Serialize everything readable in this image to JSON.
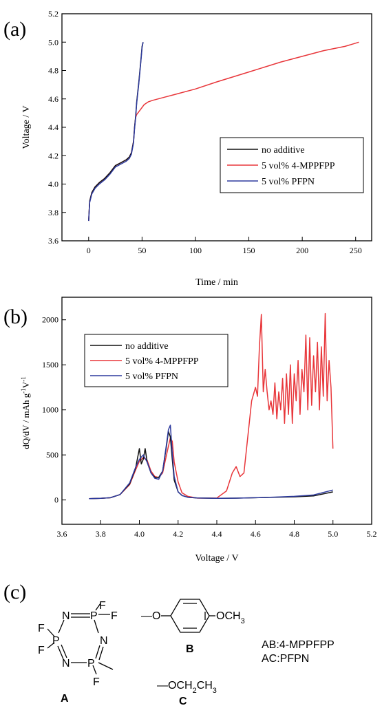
{
  "panel_labels": [
    "(a)",
    "(b)",
    "(c)"
  ],
  "colors": {
    "no_additive": "#111111",
    "mppfpp": "#e8363a",
    "pfpn": "#2d3a9e",
    "axis": "#000000"
  },
  "chart_data": [
    {
      "type": "line",
      "xlabel": "Time / min",
      "ylabel": "Voltage / V",
      "xlim": [
        -25,
        265
      ],
      "ylim": [
        3.6,
        5.2
      ],
      "xticks": [
        "0",
        "50",
        "100",
        "150",
        "200",
        "250"
      ],
      "yticks": [
        "3.6",
        "3.8",
        "4.0",
        "4.2",
        "4.4",
        "4.6",
        "4.8",
        "5.0",
        "5.2"
      ],
      "legend": {
        "placement": "center-right",
        "entries": [
          "no additive",
          "5 vol% 4-MPPFPP",
          "5 vol% PFPN"
        ]
      },
      "series": [
        {
          "name": "no additive",
          "x": [
            0,
            1,
            3,
            6,
            10,
            15,
            20,
            25,
            30,
            35,
            38,
            40,
            42,
            43,
            44,
            45,
            47,
            49,
            50,
            51
          ],
          "y": [
            3.74,
            3.88,
            3.94,
            3.98,
            4.01,
            4.04,
            4.08,
            4.13,
            4.15,
            4.17,
            4.19,
            4.22,
            4.3,
            4.4,
            4.48,
            4.58,
            4.72,
            4.88,
            4.97,
            5.0
          ]
        },
        {
          "name": "5 vol% 4-MPPFPP",
          "x": [
            0,
            1,
            3,
            6,
            10,
            15,
            20,
            25,
            30,
            35,
            38,
            40,
            42,
            43,
            44,
            45,
            48,
            52,
            56,
            60,
            70,
            80,
            100,
            120,
            150,
            180,
            200,
            220,
            240,
            253
          ],
          "y": [
            3.74,
            3.88,
            3.94,
            3.98,
            4.01,
            4.04,
            4.08,
            4.13,
            4.15,
            4.17,
            4.19,
            4.22,
            4.3,
            4.4,
            4.47,
            4.49,
            4.52,
            4.56,
            4.58,
            4.59,
            4.61,
            4.63,
            4.67,
            4.72,
            4.79,
            4.86,
            4.9,
            4.94,
            4.97,
            5.0
          ]
        },
        {
          "name": "5 vol% PFPN",
          "x": [
            0,
            1,
            3,
            6,
            10,
            15,
            20,
            25,
            30,
            35,
            38,
            40,
            42,
            43,
            44,
            45,
            47,
            49,
            50,
            51
          ],
          "y": [
            3.74,
            3.87,
            3.93,
            3.97,
            4.0,
            4.03,
            4.07,
            4.12,
            4.14,
            4.16,
            4.18,
            4.21,
            4.29,
            4.39,
            4.47,
            4.57,
            4.71,
            4.87,
            4.96,
            5.0
          ]
        }
      ]
    },
    {
      "type": "line",
      "xlabel": "Voltage / V",
      "ylabel": "dQ/dV / mAh g-1 V-1",
      "xlim": [
        3.6,
        5.2
      ],
      "ylim": [
        -270,
        2250
      ],
      "xticks": [
        "3.6",
        "3.8",
        "4.0",
        "4.2",
        "4.4",
        "4.6",
        "4.8",
        "5.0",
        "5.2"
      ],
      "yticks": [
        "0",
        "500",
        "1000",
        "1500",
        "2000"
      ],
      "legend": {
        "placement": "top-left",
        "entries": [
          "no additive",
          "5 vol% 4-MPPFPP",
          "5 vol% PFPN"
        ]
      },
      "series": [
        {
          "name": "no additive",
          "x": [
            3.74,
            3.8,
            3.85,
            3.9,
            3.95,
            3.98,
            4.0,
            4.01,
            4.02,
            4.03,
            4.04,
            4.06,
            4.08,
            4.1,
            4.12,
            4.14,
            4.15,
            4.16,
            4.17,
            4.18,
            4.2,
            4.22,
            4.25,
            4.3,
            4.4,
            4.5,
            4.6,
            4.7,
            4.8,
            4.9,
            5.0
          ],
          "y": [
            15,
            18,
            25,
            60,
            180,
            350,
            570,
            400,
            450,
            570,
            420,
            300,
            250,
            250,
            320,
            600,
            760,
            700,
            450,
            220,
            90,
            50,
            30,
            22,
            18,
            20,
            25,
            30,
            35,
            45,
            90
          ]
        },
        {
          "name": "5 vol% 4-MPPFPP",
          "x": [
            3.74,
            3.8,
            3.85,
            3.9,
            3.95,
            3.98,
            4.0,
            4.02,
            4.04,
            4.06,
            4.08,
            4.1,
            4.12,
            4.14,
            4.16,
            4.17,
            4.18,
            4.2,
            4.22,
            4.25,
            4.3,
            4.4,
            4.45,
            4.48,
            4.5,
            4.52,
            4.54,
            4.56,
            4.58,
            4.6,
            4.61,
            4.62,
            4.63,
            4.64,
            4.65,
            4.66,
            4.67,
            4.68,
            4.69,
            4.7,
            4.71,
            4.72,
            4.73,
            4.74,
            4.75,
            4.76,
            4.77,
            4.78,
            4.79,
            4.8,
            4.81,
            4.82,
            4.83,
            4.84,
            4.85,
            4.86,
            4.87,
            4.88,
            4.89,
            4.9,
            4.91,
            4.92,
            4.93,
            4.94,
            4.95,
            4.96,
            4.97,
            4.98,
            4.99,
            5.0
          ],
          "y": [
            15,
            18,
            25,
            60,
            170,
            330,
            430,
            470,
            440,
            320,
            260,
            250,
            300,
            500,
            690,
            650,
            420,
            200,
            80,
            40,
            20,
            22,
            100,
            300,
            370,
            260,
            300,
            700,
            1100,
            1250,
            1150,
            1700,
            2060,
            1200,
            1450,
            1200,
            1000,
            1100,
            950,
            1300,
            900,
            1200,
            1000,
            1350,
            850,
            1400,
            950,
            1500,
            850,
            1400,
            1100,
            1550,
            950,
            1450,
            1200,
            1830,
            1000,
            1800,
            1050,
            1600,
            1200,
            1750,
            1000,
            1700,
            1150,
            2070,
            1100,
            1550,
            1250,
            570
          ]
        },
        {
          "name": "5 vol% PFPN",
          "x": [
            3.74,
            3.8,
            3.85,
            3.9,
            3.95,
            3.98,
            4.0,
            4.02,
            4.04,
            4.06,
            4.08,
            4.1,
            4.12,
            4.14,
            4.15,
            4.16,
            4.17,
            4.18,
            4.2,
            4.22,
            4.25,
            4.3,
            4.4,
            4.5,
            4.6,
            4.7,
            4.8,
            4.9,
            5.0
          ],
          "y": [
            15,
            18,
            25,
            60,
            190,
            360,
            450,
            500,
            420,
            300,
            240,
            230,
            320,
            620,
            780,
            830,
            520,
            260,
            90,
            50,
            30,
            22,
            18,
            20,
            25,
            32,
            40,
            55,
            110
          ]
        }
      ]
    }
  ],
  "structures": {
    "A": {
      "label": "A",
      "atoms": [
        "N",
        "P",
        "F",
        "F",
        "F",
        "P",
        "F",
        "N",
        "N",
        "P",
        "F"
      ]
    },
    "B": {
      "label": "B",
      "left": "—O",
      "right": "OCH3"
    },
    "C": {
      "label": "C",
      "group": "—OCH2CH3"
    },
    "legend_lines": [
      "AB:4-MPPFPP",
      "AC:PFPN"
    ]
  }
}
